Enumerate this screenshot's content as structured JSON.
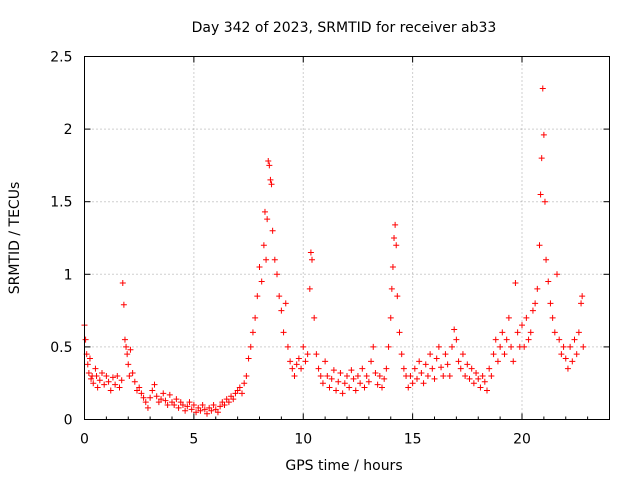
{
  "chart_data": {
    "type": "scatter",
    "title": "Day 342 of 2023, SRMTID for receiver ab33",
    "xlabel": "GPS time / hours",
    "ylabel": "SRMTID / TECUs",
    "xlim": [
      0,
      24
    ],
    "ylim": [
      0,
      2.5
    ],
    "xticks": [
      0,
      5,
      10,
      15,
      20
    ],
    "xtick_labels": [
      "0",
      "5",
      "10",
      "15",
      "20"
    ],
    "yticks": [
      0,
      0.5,
      1,
      1.5,
      2,
      2.5
    ],
    "ytick_labels": [
      "0",
      "0.5",
      "1",
      "1.5",
      "2",
      "2.5"
    ],
    "grid": true,
    "marker": "plus",
    "color": "#ff0000",
    "series": [
      {
        "name": "SRMTID",
        "points": [
          [
            0.0,
            0.65
          ],
          [
            0.05,
            0.55
          ],
          [
            0.1,
            0.45
          ],
          [
            0.15,
            0.38
          ],
          [
            0.2,
            0.32
          ],
          [
            0.25,
            0.42
          ],
          [
            0.3,
            0.28
          ],
          [
            0.35,
            0.3
          ],
          [
            0.4,
            0.25
          ],
          [
            0.5,
            0.35
          ],
          [
            0.55,
            0.3
          ],
          [
            0.6,
            0.22
          ],
          [
            0.7,
            0.27
          ],
          [
            0.8,
            0.32
          ],
          [
            0.9,
            0.24
          ],
          [
            1.0,
            0.3
          ],
          [
            1.1,
            0.26
          ],
          [
            1.2,
            0.2
          ],
          [
            1.3,
            0.29
          ],
          [
            1.4,
            0.24
          ],
          [
            1.5,
            0.3
          ],
          [
            1.6,
            0.22
          ],
          [
            1.7,
            0.27
          ],
          [
            1.75,
            0.94
          ],
          [
            1.8,
            0.79
          ],
          [
            1.85,
            0.55
          ],
          [
            1.9,
            0.5
          ],
          [
            1.95,
            0.45
          ],
          [
            2.0,
            0.38
          ],
          [
            2.05,
            0.3
          ],
          [
            2.1,
            0.48
          ],
          [
            2.2,
            0.32
          ],
          [
            2.3,
            0.26
          ],
          [
            2.4,
            0.2
          ],
          [
            2.5,
            0.22
          ],
          [
            2.6,
            0.18
          ],
          [
            2.7,
            0.15
          ],
          [
            2.8,
            0.12
          ],
          [
            2.9,
            0.08
          ],
          [
            3.0,
            0.15
          ],
          [
            3.1,
            0.2
          ],
          [
            3.2,
            0.24
          ],
          [
            3.3,
            0.16
          ],
          [
            3.4,
            0.12
          ],
          [
            3.5,
            0.14
          ],
          [
            3.6,
            0.18
          ],
          [
            3.7,
            0.13
          ],
          [
            3.8,
            0.1
          ],
          [
            3.9,
            0.17
          ],
          [
            4.0,
            0.12
          ],
          [
            4.1,
            0.1
          ],
          [
            4.2,
            0.14
          ],
          [
            4.3,
            0.08
          ],
          [
            4.4,
            0.12
          ],
          [
            4.5,
            0.1
          ],
          [
            4.6,
            0.06
          ],
          [
            4.7,
            0.09
          ],
          [
            4.8,
            0.12
          ],
          [
            4.9,
            0.07
          ],
          [
            5.0,
            0.1
          ],
          [
            5.1,
            0.05
          ],
          [
            5.2,
            0.08
          ],
          [
            5.3,
            0.06
          ],
          [
            5.4,
            0.1
          ],
          [
            5.5,
            0.07
          ],
          [
            5.6,
            0.04
          ],
          [
            5.7,
            0.08
          ],
          [
            5.8,
            0.06
          ],
          [
            5.9,
            0.1
          ],
          [
            6.0,
            0.07
          ],
          [
            6.1,
            0.05
          ],
          [
            6.2,
            0.09
          ],
          [
            6.3,
            0.12
          ],
          [
            6.4,
            0.1
          ],
          [
            6.5,
            0.14
          ],
          [
            6.6,
            0.12
          ],
          [
            6.7,
            0.16
          ],
          [
            6.8,
            0.14
          ],
          [
            6.9,
            0.18
          ],
          [
            7.0,
            0.2
          ],
          [
            7.1,
            0.22
          ],
          [
            7.2,
            0.18
          ],
          [
            7.3,
            0.25
          ],
          [
            7.4,
            0.3
          ],
          [
            7.5,
            0.42
          ],
          [
            7.6,
            0.5
          ],
          [
            7.7,
            0.6
          ],
          [
            7.8,
            0.7
          ],
          [
            7.9,
            0.85
          ],
          [
            8.0,
            1.05
          ],
          [
            8.1,
            0.95
          ],
          [
            8.2,
            1.2
          ],
          [
            8.25,
            1.43
          ],
          [
            8.3,
            1.1
          ],
          [
            8.35,
            1.38
          ],
          [
            8.4,
            1.78
          ],
          [
            8.45,
            1.75
          ],
          [
            8.5,
            1.65
          ],
          [
            8.55,
            1.62
          ],
          [
            8.6,
            1.3
          ],
          [
            8.7,
            1.1
          ],
          [
            8.8,
            1.0
          ],
          [
            8.9,
            0.85
          ],
          [
            9.0,
            0.75
          ],
          [
            9.1,
            0.6
          ],
          [
            9.2,
            0.8
          ],
          [
            9.3,
            0.5
          ],
          [
            9.4,
            0.4
          ],
          [
            9.5,
            0.35
          ],
          [
            9.6,
            0.3
          ],
          [
            9.7,
            0.38
          ],
          [
            9.8,
            0.42
          ],
          [
            9.9,
            0.35
          ],
          [
            10.0,
            0.5
          ],
          [
            10.1,
            0.4
          ],
          [
            10.2,
            0.45
          ],
          [
            10.3,
            0.9
          ],
          [
            10.35,
            1.15
          ],
          [
            10.4,
            1.1
          ],
          [
            10.5,
            0.7
          ],
          [
            10.6,
            0.45
          ],
          [
            10.7,
            0.35
          ],
          [
            10.8,
            0.3
          ],
          [
            10.9,
            0.25
          ],
          [
            11.0,
            0.4
          ],
          [
            11.1,
            0.3
          ],
          [
            11.2,
            0.22
          ],
          [
            11.3,
            0.28
          ],
          [
            11.4,
            0.34
          ],
          [
            11.5,
            0.2
          ],
          [
            11.6,
            0.26
          ],
          [
            11.7,
            0.32
          ],
          [
            11.8,
            0.18
          ],
          [
            11.9,
            0.25
          ],
          [
            12.0,
            0.3
          ],
          [
            12.1,
            0.22
          ],
          [
            12.2,
            0.34
          ],
          [
            12.3,
            0.28
          ],
          [
            12.4,
            0.2
          ],
          [
            12.5,
            0.3
          ],
          [
            12.6,
            0.25
          ],
          [
            12.7,
            0.35
          ],
          [
            12.8,
            0.22
          ],
          [
            12.9,
            0.3
          ],
          [
            13.0,
            0.26
          ],
          [
            13.1,
            0.4
          ],
          [
            13.2,
            0.5
          ],
          [
            13.3,
            0.32
          ],
          [
            13.4,
            0.24
          ],
          [
            13.5,
            0.3
          ],
          [
            13.6,
            0.22
          ],
          [
            13.7,
            0.28
          ],
          [
            13.8,
            0.35
          ],
          [
            13.9,
            0.5
          ],
          [
            14.0,
            0.7
          ],
          [
            14.05,
            0.9
          ],
          [
            14.1,
            1.05
          ],
          [
            14.15,
            1.25
          ],
          [
            14.2,
            1.34
          ],
          [
            14.25,
            1.2
          ],
          [
            14.3,
            0.85
          ],
          [
            14.4,
            0.6
          ],
          [
            14.5,
            0.45
          ],
          [
            14.6,
            0.35
          ],
          [
            14.7,
            0.3
          ],
          [
            14.8,
            0.22
          ],
          [
            14.9,
            0.3
          ],
          [
            15.0,
            0.25
          ],
          [
            15.1,
            0.35
          ],
          [
            15.2,
            0.28
          ],
          [
            15.3,
            0.4
          ],
          [
            15.4,
            0.32
          ],
          [
            15.5,
            0.25
          ],
          [
            15.6,
            0.38
          ],
          [
            15.7,
            0.3
          ],
          [
            15.8,
            0.45
          ],
          [
            15.9,
            0.35
          ],
          [
            16.0,
            0.28
          ],
          [
            16.1,
            0.42
          ],
          [
            16.2,
            0.5
          ],
          [
            16.3,
            0.36
          ],
          [
            16.4,
            0.3
          ],
          [
            16.5,
            0.45
          ],
          [
            16.6,
            0.38
          ],
          [
            16.7,
            0.3
          ],
          [
            16.8,
            0.5
          ],
          [
            16.9,
            0.62
          ],
          [
            17.0,
            0.55
          ],
          [
            17.1,
            0.4
          ],
          [
            17.2,
            0.35
          ],
          [
            17.3,
            0.45
          ],
          [
            17.4,
            0.3
          ],
          [
            17.5,
            0.38
          ],
          [
            17.6,
            0.28
          ],
          [
            17.7,
            0.35
          ],
          [
            17.8,
            0.25
          ],
          [
            17.9,
            0.32
          ],
          [
            18.0,
            0.28
          ],
          [
            18.1,
            0.22
          ],
          [
            18.2,
            0.3
          ],
          [
            18.3,
            0.26
          ],
          [
            18.4,
            0.2
          ],
          [
            18.5,
            0.35
          ],
          [
            18.6,
            0.3
          ],
          [
            18.7,
            0.45
          ],
          [
            18.8,
            0.55
          ],
          [
            18.9,
            0.4
          ],
          [
            19.0,
            0.5
          ],
          [
            19.1,
            0.6
          ],
          [
            19.2,
            0.45
          ],
          [
            19.3,
            0.55
          ],
          [
            19.4,
            0.7
          ],
          [
            19.5,
            0.5
          ],
          [
            19.6,
            0.4
          ],
          [
            19.7,
            0.94
          ],
          [
            19.8,
            0.6
          ],
          [
            19.9,
            0.5
          ],
          [
            20.0,
            0.65
          ],
          [
            20.1,
            0.5
          ],
          [
            20.2,
            0.7
          ],
          [
            20.3,
            0.55
          ],
          [
            20.4,
            0.6
          ],
          [
            20.5,
            0.75
          ],
          [
            20.6,
            0.8
          ],
          [
            20.7,
            0.9
          ],
          [
            20.8,
            1.2
          ],
          [
            20.85,
            1.55
          ],
          [
            20.9,
            1.8
          ],
          [
            20.95,
            2.28
          ],
          [
            21.0,
            1.96
          ],
          [
            21.05,
            1.5
          ],
          [
            21.1,
            1.1
          ],
          [
            21.2,
            0.95
          ],
          [
            21.3,
            0.8
          ],
          [
            21.4,
            0.7
          ],
          [
            21.5,
            0.6
          ],
          [
            21.6,
            1.0
          ],
          [
            21.7,
            0.55
          ],
          [
            21.8,
            0.45
          ],
          [
            21.9,
            0.5
          ],
          [
            22.0,
            0.42
          ],
          [
            22.1,
            0.35
          ],
          [
            22.2,
            0.5
          ],
          [
            22.3,
            0.4
          ],
          [
            22.4,
            0.55
          ],
          [
            22.5,
            0.45
          ],
          [
            22.6,
            0.6
          ],
          [
            22.7,
            0.8
          ],
          [
            22.75,
            0.85
          ],
          [
            22.8,
            0.5
          ]
        ]
      }
    ]
  }
}
